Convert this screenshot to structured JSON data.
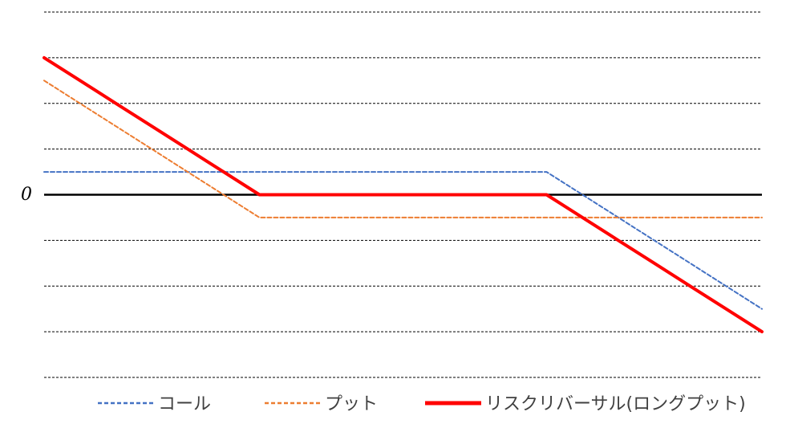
{
  "chart_data": {
    "type": "line",
    "x": [
      0,
      1,
      2,
      3,
      4,
      5,
      6,
      7,
      8,
      9,
      10,
      11,
      12,
      13,
      14,
      15,
      16,
      17,
      18,
      19,
      20
    ],
    "ylim": [
      -8,
      8
    ],
    "yticks": [
      -8,
      -6,
      -4,
      -2,
      0,
      2,
      4,
      6,
      8
    ],
    "grid": true,
    "grid_style": "dashed",
    "legend_position": "bottom",
    "zero_label": "0",
    "series": [
      {
        "name": "コール",
        "color": "#4472C4",
        "style": "dashed",
        "values": [
          1,
          1,
          1,
          1,
          1,
          1,
          1,
          1,
          1,
          1,
          1,
          1,
          1,
          1,
          1,
          0,
          -1,
          -2,
          -3,
          -4,
          -5
        ]
      },
      {
        "name": "プット",
        "color": "#ED7D31",
        "style": "dashed",
        "values": [
          5,
          4,
          3,
          2,
          1,
          0,
          -1,
          -1,
          -1,
          -1,
          -1,
          -1,
          -1,
          -1,
          -1,
          -1,
          -1,
          -1,
          -1,
          -1,
          -1
        ]
      },
      {
        "name": "リスクリバーサル(ロングプット)",
        "color": "#FF0000",
        "style": "solid",
        "values": [
          6,
          5,
          4,
          3,
          2,
          1,
          0,
          0,
          0,
          0,
          0,
          0,
          0,
          0,
          0,
          -1,
          -2,
          -3,
          -4,
          -5,
          -6
        ]
      }
    ]
  }
}
